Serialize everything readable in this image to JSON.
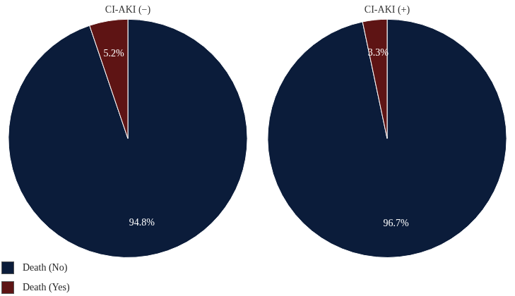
{
  "chart_data": [
    {
      "type": "pie",
      "title": "CI-AKI (−)",
      "categories": [
        "Death (No)",
        "Death (Yes)"
      ],
      "values": [
        94.8,
        5.2
      ],
      "value_labels": [
        "94.8%",
        "5.2%"
      ],
      "colors": [
        "#0b1c3a",
        "#5e1414"
      ],
      "data_labels": true,
      "legend": "lower left"
    },
    {
      "type": "pie",
      "title": "CI-AKI (+)",
      "categories": [
        "Death (No)",
        "Death (Yes)"
      ],
      "values": [
        96.7,
        3.3
      ],
      "value_labels": [
        "96.7%",
        "3.3%"
      ],
      "colors": [
        "#0b1c3a",
        "#5e1414"
      ],
      "data_labels": true
    }
  ]
}
